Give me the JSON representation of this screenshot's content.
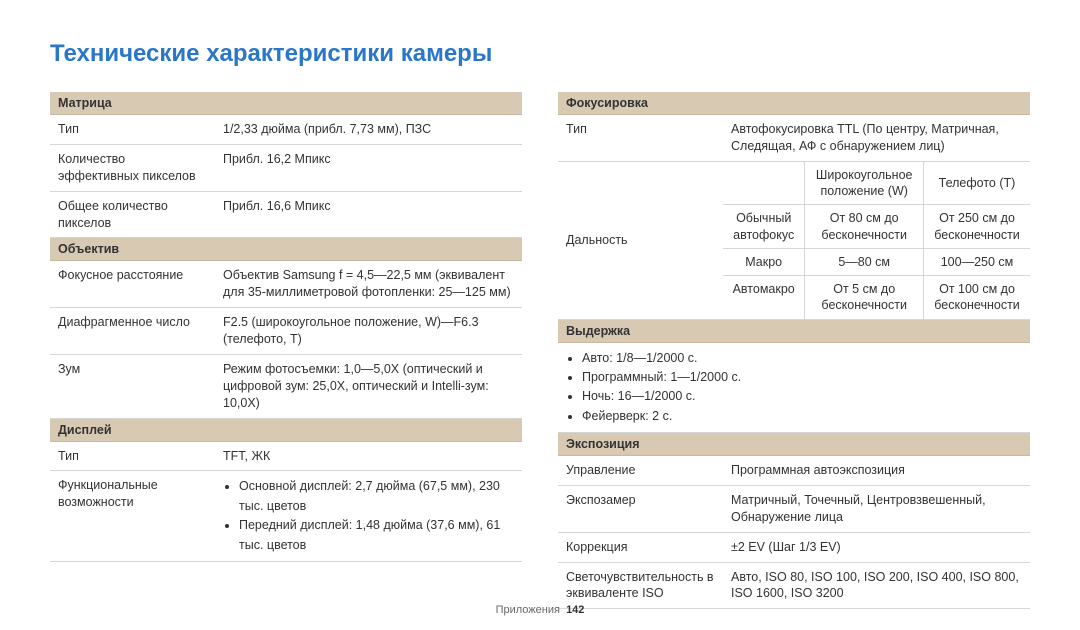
{
  "title": "Технические характеристики камеры",
  "footer": {
    "section": "Приложения",
    "page": "142"
  },
  "left": {
    "s1": {
      "header": "Матрица",
      "r1l": "Тип",
      "r1v": "1/2,33 дюйма (прибл. 7,73 мм), ПЗС",
      "r2l": "Количество эффективных пикселов",
      "r2v": "Прибл. 16,2 Мпикс",
      "r3l": "Общее количество пикселов",
      "r3v": "Прибл. 16,6 Мпикс"
    },
    "s2": {
      "header": "Объектив",
      "r1l": "Фокусное расстояние",
      "r1v": "Объектив Samsung f = 4,5—22,5 мм (эквивалент для 35-миллиметровой фотопленки: 25—125 мм)",
      "r2l": "Диафрагменное число",
      "r2v": "F2.5 (широкоугольное положение, W)—F6.3 (телефото, T)",
      "r3l": "Зум",
      "r3v": "Режим фотосъемки: 1,0—5,0X (оптический и цифровой зум: 25,0X, оптический и Intelli-зум: 10,0X)"
    },
    "s3": {
      "header": "Дисплей",
      "r1l": "Тип",
      "r1v": "TFT, ЖК",
      "r2l": "Функциональные возможности",
      "r2b1": "Основной дисплей: 2,7 дюйма (67,5 мм), 230 тыс. цветов",
      "r2b2": "Передний дисплей: 1,48 дюйма (37,6 мм), 61 тыс. цветов"
    }
  },
  "right": {
    "s1": {
      "header": "Фокусировка",
      "r1l": "Тип",
      "r1v": "Автофокусировка TTL (По центру, Матричная, Следящая, АФ с обнаружением лиц)",
      "r2l": "Дальность",
      "grid": {
        "h1": "Широкоугольное положение (W)",
        "h2": "Телефото (T)",
        "row1l": "Обычный автофокус",
        "row1w": "От 80 см до бесконечности",
        "row1t": "От 250 см до бесконечности",
        "row2l": "Макро",
        "row2w": "5—80 см",
        "row2t": "100—250 см",
        "row3l": "Автомакро",
        "row3w": "От 5 см до бесконечности",
        "row3t": "От 100 см до бесконечности"
      }
    },
    "s2": {
      "header": "Выдержка",
      "b1": "Авто: 1/8—1/2000 с.",
      "b2": "Программный: 1—1/2000 с.",
      "b3": "Ночь: 16—1/2000 с.",
      "b4": "Фейерверк: 2 с."
    },
    "s3": {
      "header": "Экспозиция",
      "r1l": "Управление",
      "r1v": "Программная автоэкспозиция",
      "r2l": "Экспозамер",
      "r2v": "Матричный, Точечный, Центровзвешенный, Обнаружение лица",
      "r3l": "Коррекция",
      "r3v": "±2 EV (Шаг 1/3 EV)",
      "r4l": "Светочувствительность в эквиваленте ISO",
      "r4v": "Авто, ISO 80, ISO 100, ISO 200, ISO 400, ISO 800, ISO 1600, ISO 3200"
    }
  }
}
